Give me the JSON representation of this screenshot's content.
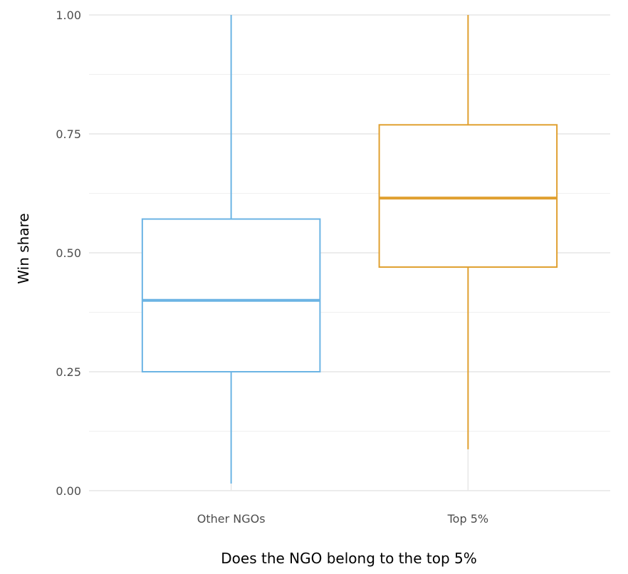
{
  "chart_data": {
    "type": "boxplot",
    "xlabel": "Does the NGO belong to the top 5%",
    "ylabel": "Win share",
    "ylim": [
      0,
      1
    ],
    "y_ticks": [
      "0.00",
      "0.25",
      "0.50",
      "0.75",
      "1.00"
    ],
    "grid": true,
    "legend": "none",
    "categories": [
      "Other NGOs",
      "Top 5%"
    ],
    "boxes": [
      {
        "category": "Other NGOs",
        "min": 0.015,
        "q1": 0.25,
        "median": 0.4,
        "q3": 0.571,
        "max": 1.0,
        "color": "#6cb4e4"
      },
      {
        "category": "Top 5%",
        "min": 0.087,
        "q1": 0.47,
        "median": 0.615,
        "q3": 0.769,
        "max": 1.0,
        "color": "#e0a030"
      }
    ]
  }
}
